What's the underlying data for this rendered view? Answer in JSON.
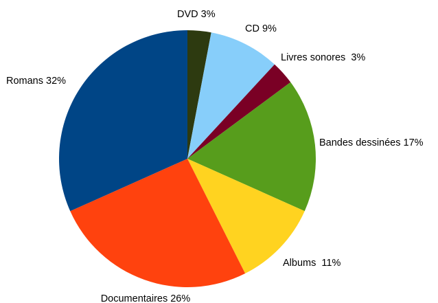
{
  "chart_data": {
    "type": "pie",
    "title": "",
    "slices": [
      {
        "label": "DVD 3%",
        "value": 3,
        "color": "#2d3a10"
      },
      {
        "label": "CD 9%",
        "value": 9,
        "color": "#87cefa"
      },
      {
        "label": "Livres sonores  3%",
        "value": 3,
        "color": "#7a0025"
      },
      {
        "label": "Bandes dessinées 17%",
        "value": 17,
        "color": "#579d1c"
      },
      {
        "label": "Albums  11%",
        "value": 11,
        "color": "#ffd320"
      },
      {
        "label": "Documentaires 26%",
        "value": 26,
        "color": "#ff420e"
      },
      {
        "label": "Romans 32%",
        "value": 32,
        "color": "#004586"
      }
    ],
    "start": "top",
    "direction": "clockwise",
    "legend": "none"
  }
}
